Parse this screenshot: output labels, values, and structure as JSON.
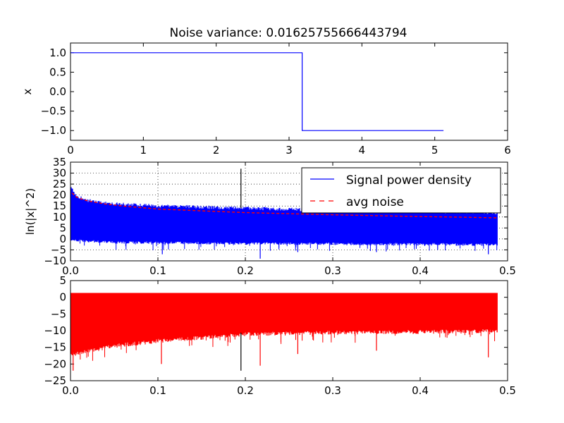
{
  "chart_data": [
    {
      "type": "line",
      "title": "Noise variance: 0.01625755666443794",
      "xlabel": "",
      "ylabel": "x",
      "xlim": [
        0,
        6
      ],
      "ylim": [
        -1.25,
        1.25
      ],
      "xticks": [
        0,
        1,
        2,
        3,
        4,
        5,
        6
      ],
      "yticks": [
        1.0,
        0.5,
        0.0,
        -0.5,
        -1.0
      ],
      "xtick_labels": [
        "0",
        "1",
        "2",
        "3",
        "4",
        "5",
        "6"
      ],
      "ytick_labels": [
        "1.0",
        "0.5",
        "0.0",
        "−0.5",
        "−1.0"
      ],
      "grid": false,
      "series": [
        {
          "color": "#0000ff",
          "x": [
            0,
            3.18,
            3.18,
            5.12
          ],
          "y": [
            1.0,
            1.0,
            -1.0,
            -1.0
          ]
        }
      ]
    },
    {
      "type": "line",
      "title": "",
      "xlabel": "",
      "ylabel": "ln(|x|^2)",
      "xlim": [
        0,
        0.5
      ],
      "ylim": [
        -10,
        35
      ],
      "xticks": [
        0,
        0.1,
        0.2,
        0.3,
        0.4,
        0.5
      ],
      "yticks": [
        -10,
        -5,
        0,
        5,
        10,
        15,
        20,
        25,
        30,
        35
      ],
      "xtick_labels": [
        "0.0",
        "0.1",
        "0.2",
        "0.3",
        "0.4",
        "0.5"
      ],
      "ytick_labels": [
        "−10",
        "−5",
        "0",
        "5",
        "10",
        "15",
        "20",
        "25",
        "30",
        "35"
      ],
      "grid": true,
      "legend_position": "top-right",
      "legend": [
        {
          "label": "Signal power density",
          "color": "#0000ff",
          "style": "solid"
        },
        {
          "label": "avg noise",
          "color": "#ff0000",
          "style": "dashed"
        }
      ],
      "series": [
        {
          "name": "Signal power density",
          "color": "#0000ff",
          "style": "solid",
          "x_range": [
            0.0,
            0.488
          ],
          "envelope_upper": [
            [
              0.0,
              25
            ],
            [
              0.005,
              20
            ],
            [
              0.02,
              17.5
            ],
            [
              0.05,
              16
            ],
            [
              0.1,
              15
            ],
            [
              0.2,
              14
            ],
            [
              0.3,
              13
            ],
            [
              0.4,
              12.5
            ],
            [
              0.488,
              12
            ]
          ],
          "envelope_lower": [
            [
              0.0,
              0
            ],
            [
              0.05,
              -1
            ],
            [
              0.2,
              -1.5
            ],
            [
              0.488,
              -2
            ]
          ],
          "spikes": [
            {
              "x": 0.195,
              "y": 32,
              "color": "#000000"
            },
            {
              "x": 0.105,
              "y": -7,
              "color": "#0000ff"
            },
            {
              "x": 0.217,
              "y": -9,
              "color": "#0000ff"
            },
            {
              "x": 0.26,
              "y": -6,
              "color": "#0000ff"
            },
            {
              "x": 0.35,
              "y": -6,
              "color": "#0000ff"
            },
            {
              "x": 0.42,
              "y": -5,
              "color": "#0000ff"
            },
            {
              "x": 0.478,
              "y": -7,
              "color": "#0000ff"
            }
          ]
        },
        {
          "name": "avg noise",
          "color": "#ff0000",
          "style": "dashed",
          "points": [
            [
              0.002,
              21
            ],
            [
              0.005,
              19.5
            ],
            [
              0.01,
              18.5
            ],
            [
              0.02,
              17.3
            ],
            [
              0.04,
              15.9
            ],
            [
              0.06,
              15
            ],
            [
              0.08,
              14.3
            ],
            [
              0.1,
              13.6
            ],
            [
              0.15,
              12.8
            ],
            [
              0.2,
              12
            ],
            [
              0.25,
              11.5
            ],
            [
              0.3,
              11
            ],
            [
              0.35,
              10.6
            ],
            [
              0.4,
              10.2
            ],
            [
              0.45,
              9.9
            ],
            [
              0.488,
              9.6
            ]
          ]
        }
      ]
    },
    {
      "type": "line",
      "title": "",
      "xlabel": "",
      "ylabel": "",
      "xlim": [
        0,
        0.5
      ],
      "ylim": [
        -25,
        5
      ],
      "xticks": [
        0,
        0.1,
        0.2,
        0.3,
        0.4,
        0.5
      ],
      "yticks": [
        5,
        0,
        -5,
        -10,
        -15,
        -20,
        -25
      ],
      "xtick_labels": [
        "0.0",
        "0.1",
        "0.2",
        "0.3",
        "0.4",
        "0.5"
      ],
      "ytick_labels": [
        "5",
        "0",
        "−5",
        "−10",
        "−15",
        "−20",
        "−25"
      ],
      "grid": false,
      "series": [
        {
          "color": "#ff0000",
          "x_range": [
            0.0,
            0.488
          ],
          "upper": 1.3,
          "envelope_lower": [
            [
              0.0,
              -17
            ],
            [
              0.01,
              -16
            ],
            [
              0.05,
              -14
            ],
            [
              0.1,
              -12.5
            ],
            [
              0.15,
              -11.5
            ],
            [
              0.2,
              -10.5
            ],
            [
              0.3,
              -10
            ],
            [
              0.4,
              -9.8
            ],
            [
              0.488,
              -9.5
            ]
          ],
          "spikes": [
            {
              "x": 0.003,
              "y": -22,
              "color": "#ff0000"
            },
            {
              "x": 0.104,
              "y": -20,
              "color": "#ff0000"
            },
            {
              "x": 0.195,
              "y": -22,
              "color": "#000000"
            },
            {
              "x": 0.217,
              "y": -20.5,
              "color": "#ff0000"
            },
            {
              "x": 0.26,
              "y": -17,
              "color": "#ff0000"
            },
            {
              "x": 0.35,
              "y": -16,
              "color": "#ff0000"
            },
            {
              "x": 0.478,
              "y": -18,
              "color": "#ff0000"
            }
          ]
        }
      ]
    }
  ]
}
